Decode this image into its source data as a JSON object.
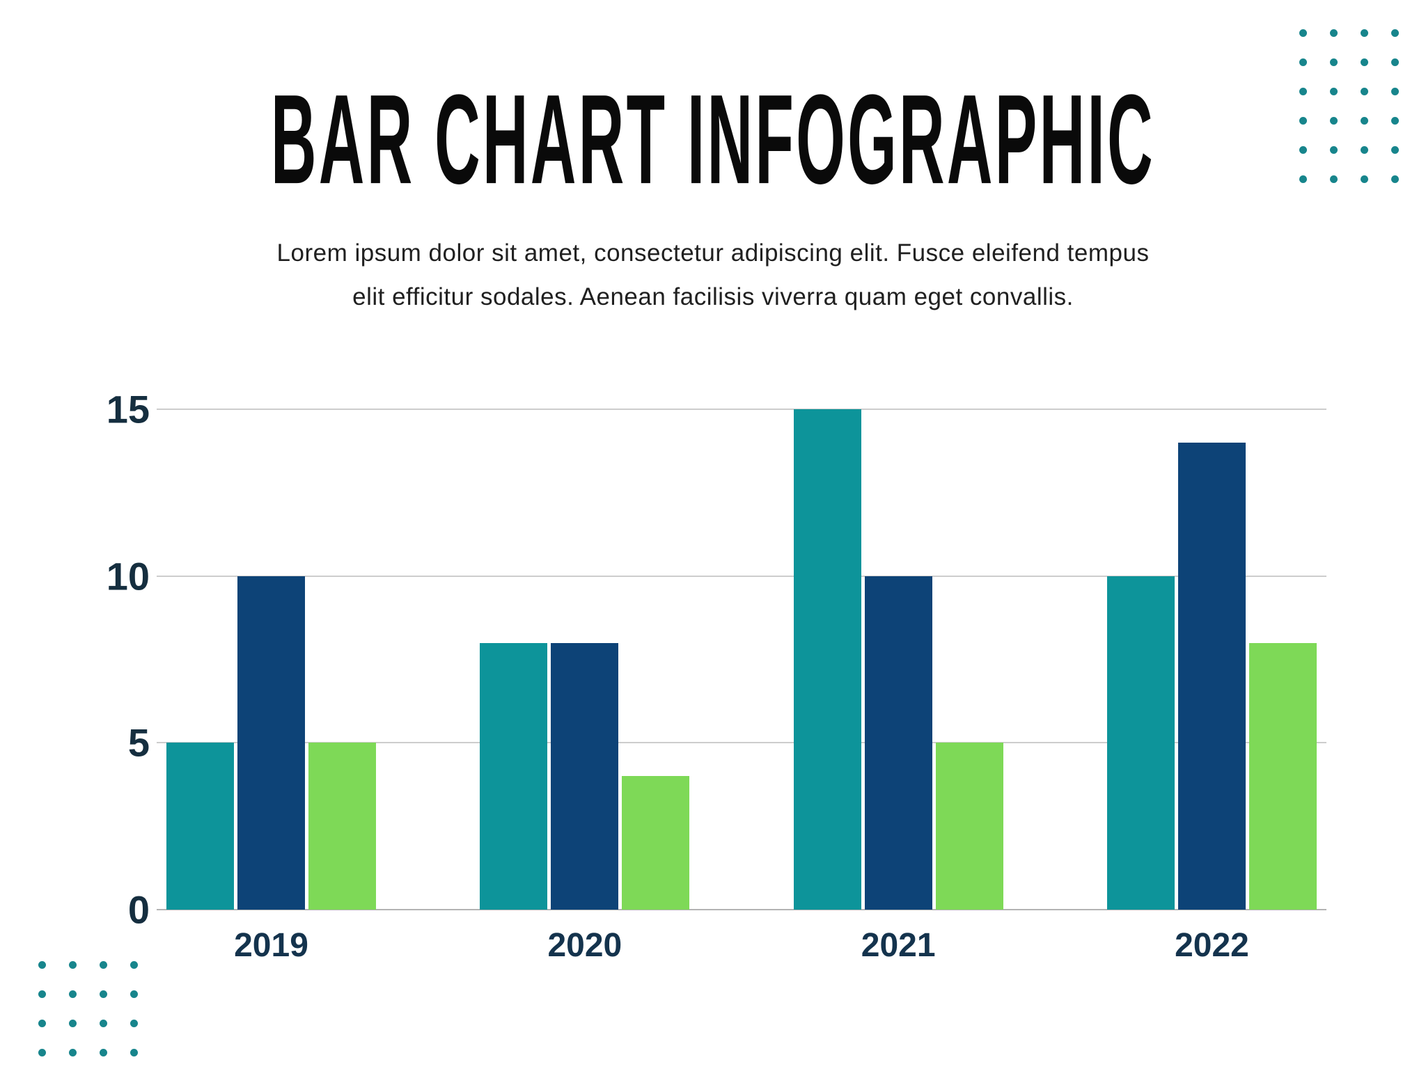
{
  "header": {
    "title": "BAR CHART INFOGRAPHIC",
    "subtitle_line1": "Lorem ipsum dolor sit amet, consectetur adipiscing elit. Fusce eleifend tempus",
    "subtitle_line2": "elit efficitur sodales. Aenean facilisis viverra quam eget convallis."
  },
  "chart_data": {
    "type": "bar",
    "title": "BAR CHART INFOGRAPHIC",
    "categories": [
      "2019",
      "2020",
      "2021",
      "2022"
    ],
    "series": [
      {
        "name": "teal-series",
        "color": "#0d949a",
        "values": [
          5,
          8,
          15,
          10
        ]
      },
      {
        "name": "navy-series",
        "color": "#0d4377",
        "values": [
          10,
          8,
          10,
          14
        ]
      },
      {
        "name": "green-series",
        "color": "#7ed957",
        "values": [
          5,
          4,
          5,
          8
        ]
      }
    ],
    "xlabel": "",
    "ylabel": "",
    "y_ticks": [
      0,
      5,
      10,
      15
    ],
    "y_ticks_display": [
      "15",
      "10",
      "5",
      "0"
    ],
    "ylim": [
      0,
      15
    ],
    "grid": true,
    "legend": "none"
  },
  "decor": {
    "dot_color": "#17858c",
    "top_right_grid": {
      "rows": 6,
      "cols": 4
    },
    "bottom_left_grid": {
      "rows": 4,
      "cols": 4
    }
  },
  "colors": {
    "background": "#ffffff",
    "gridline": "#cdcdcd",
    "baseline": "#b3b3b3",
    "axis_label": "#152e3f",
    "category_label": "#14334d",
    "title": "#0a0a0a",
    "subtitle": "#202020"
  }
}
